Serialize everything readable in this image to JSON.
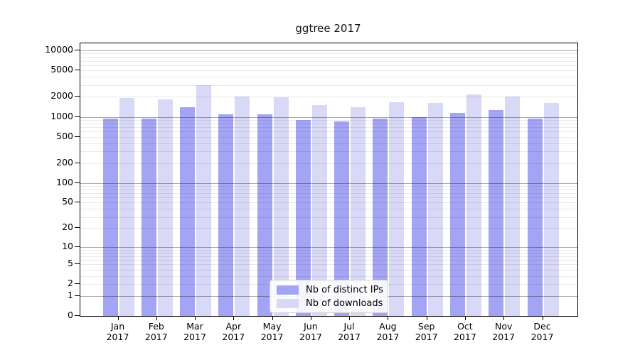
{
  "title": "ggtree 2017",
  "chart_data": {
    "type": "bar",
    "title": "ggtree 2017",
    "categories": [
      "Jan",
      "Feb",
      "Mar",
      "Apr",
      "May",
      "Jun",
      "Jul",
      "Aug",
      "Sep",
      "Oct",
      "Nov",
      "Dec"
    ],
    "category_year": "2017",
    "series": [
      {
        "name": "Nb of distinct IPs",
        "color": "#a4a4f4",
        "values": [
          950,
          950,
          1400,
          1100,
          1100,
          900,
          850,
          950,
          1000,
          1150,
          1250,
          950
        ]
      },
      {
        "name": "Nb of downloads",
        "color": "#d8d8f7",
        "values": [
          1900,
          1850,
          3000,
          2000,
          1950,
          1500,
          1400,
          1650,
          1600,
          2150,
          2000,
          1600
        ]
      }
    ],
    "xlabel": "",
    "ylabel": "",
    "yscale": "log10(x+1)",
    "yticks": [
      0,
      1,
      2,
      5,
      10,
      20,
      50,
      100,
      200,
      500,
      1000,
      2000,
      5000,
      10000
    ],
    "ylim": [
      0,
      12800
    ],
    "grid": "log major+minor horizontal gridlines drawn over bars",
    "legend_position": "lower center"
  }
}
